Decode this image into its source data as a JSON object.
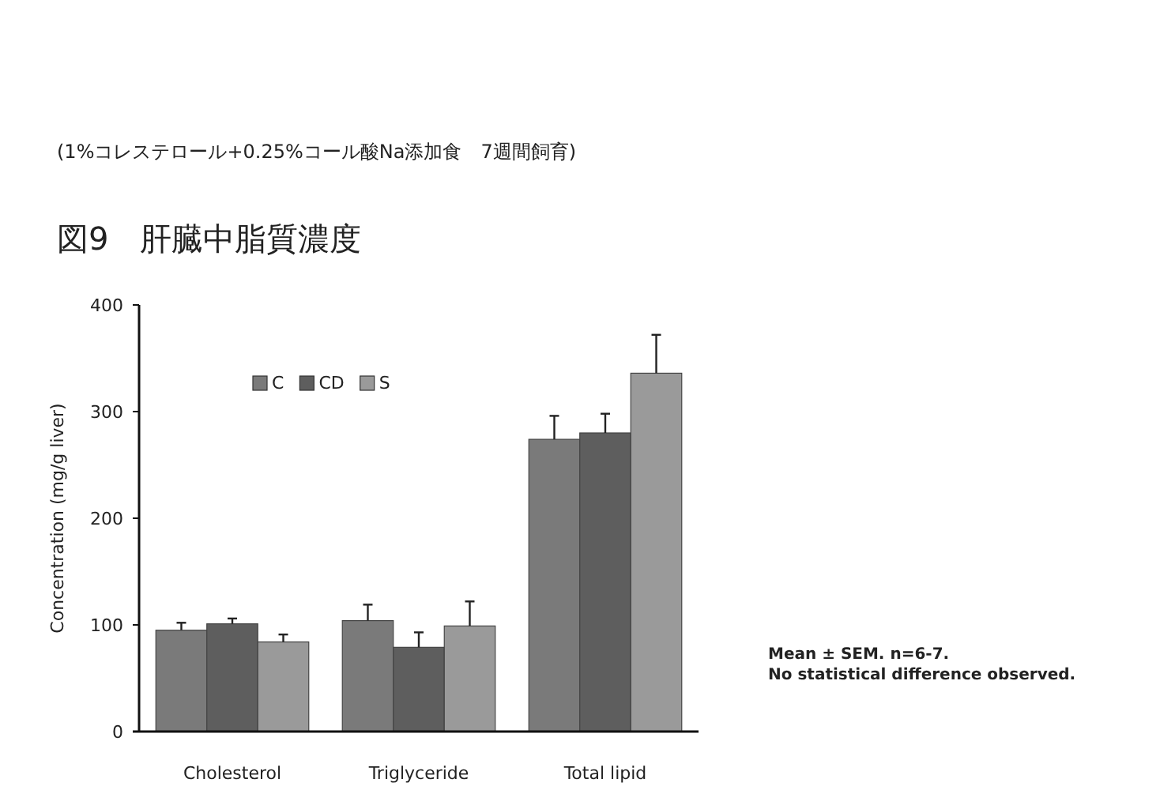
{
  "chart_data": {
    "type": "bar",
    "subtitle": "(1%コレステロール+0.25%コール酸Na添加食　7週間飼育)",
    "title": "図9　肝臓中脂質濃度",
    "ylabel": "Concentration (mg/g liver)",
    "categories": [
      "Cholesterol",
      "Triglyceride",
      "Total lipid"
    ],
    "series": [
      {
        "name": "C",
        "color": "#7a7a7a",
        "values": [
          95,
          104,
          274
        ],
        "errors": [
          7,
          15,
          22
        ]
      },
      {
        "name": "CD",
        "color": "#5e5e5e",
        "values": [
          101,
          79,
          280
        ],
        "errors": [
          5,
          14,
          18
        ]
      },
      {
        "name": "S",
        "color": "#9a9a9a",
        "values": [
          84,
          99,
          336
        ],
        "errors": [
          7,
          23,
          36
        ]
      }
    ],
    "ylim": [
      0,
      400
    ],
    "yticks": [
      0,
      100,
      200,
      300,
      400
    ],
    "legend": "top left",
    "annotations": [
      "Mean ± SEM. n=6-7.",
      "No statistical difference observed."
    ]
  }
}
